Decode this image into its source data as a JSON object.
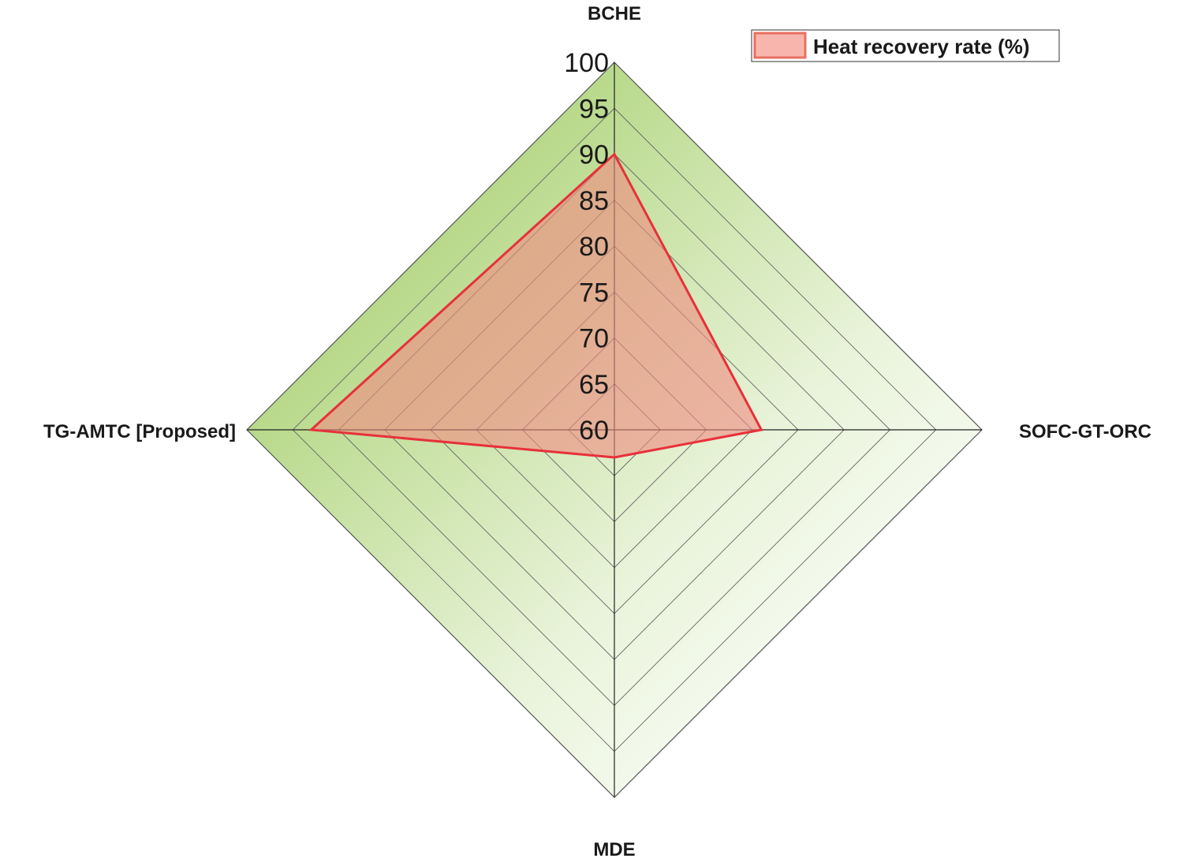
{
  "chart_data": {
    "type": "radar",
    "axes": [
      "BCHE",
      "SOFC-GT-ORC",
      "MDE",
      "TG-AMTC [Proposed]"
    ],
    "series": [
      {
        "name": "Heat recovery rate (%)",
        "values": [
          90,
          76,
          63,
          93
        ]
      }
    ],
    "rlim": [
      60,
      100
    ],
    "ticks": [
      "60",
      "65",
      "70",
      "75",
      "80",
      "85",
      "90",
      "95",
      "100"
    ],
    "grid": true,
    "legend": "top-right",
    "colors": {
      "series_line": "#e8303a",
      "series_fill": "#f08a80",
      "background_strong": "#b8d98a",
      "background_light": "#fbfdf7",
      "grid_line": "#666666",
      "legend_fill": "#f7b5ad",
      "legend_border": "#e87060"
    }
  }
}
